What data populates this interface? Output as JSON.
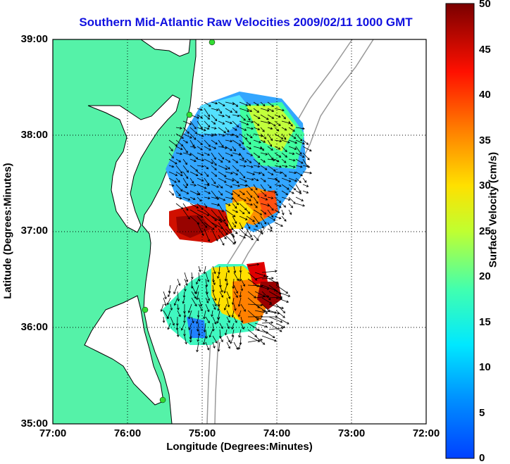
{
  "title": "Southern Mid-Atlantic Raw Velocities 2009/02/11 1000 GMT",
  "x_axis": {
    "label": "Longitude (Degrees:Minutes)",
    "ticks": [
      "77:00",
      "76:00",
      "75:00",
      "74:00",
      "73:00",
      "72:00"
    ]
  },
  "y_axis": {
    "label": "Latitude (Degrees:Minutes)",
    "ticks": [
      "39:00",
      "38:00",
      "37:00",
      "36:00",
      "35:00"
    ]
  },
  "colorbar": {
    "label": "Surface Velocity (cm/s)",
    "ticks": [
      "50",
      "45",
      "40",
      "35",
      "30",
      "25",
      "20",
      "15",
      "10",
      "5",
      "0"
    ],
    "range": [
      0,
      50
    ],
    "colormap": "jet"
  },
  "colors": {
    "land": "#55f2a8",
    "coastline": "#000000",
    "bathymetry": "#999999",
    "station": "#33dd33",
    "grid": "#000000"
  },
  "map": {
    "lon_range": [
      -77,
      -72
    ],
    "lat_range": [
      35,
      39
    ],
    "grid": "dotted"
  }
}
